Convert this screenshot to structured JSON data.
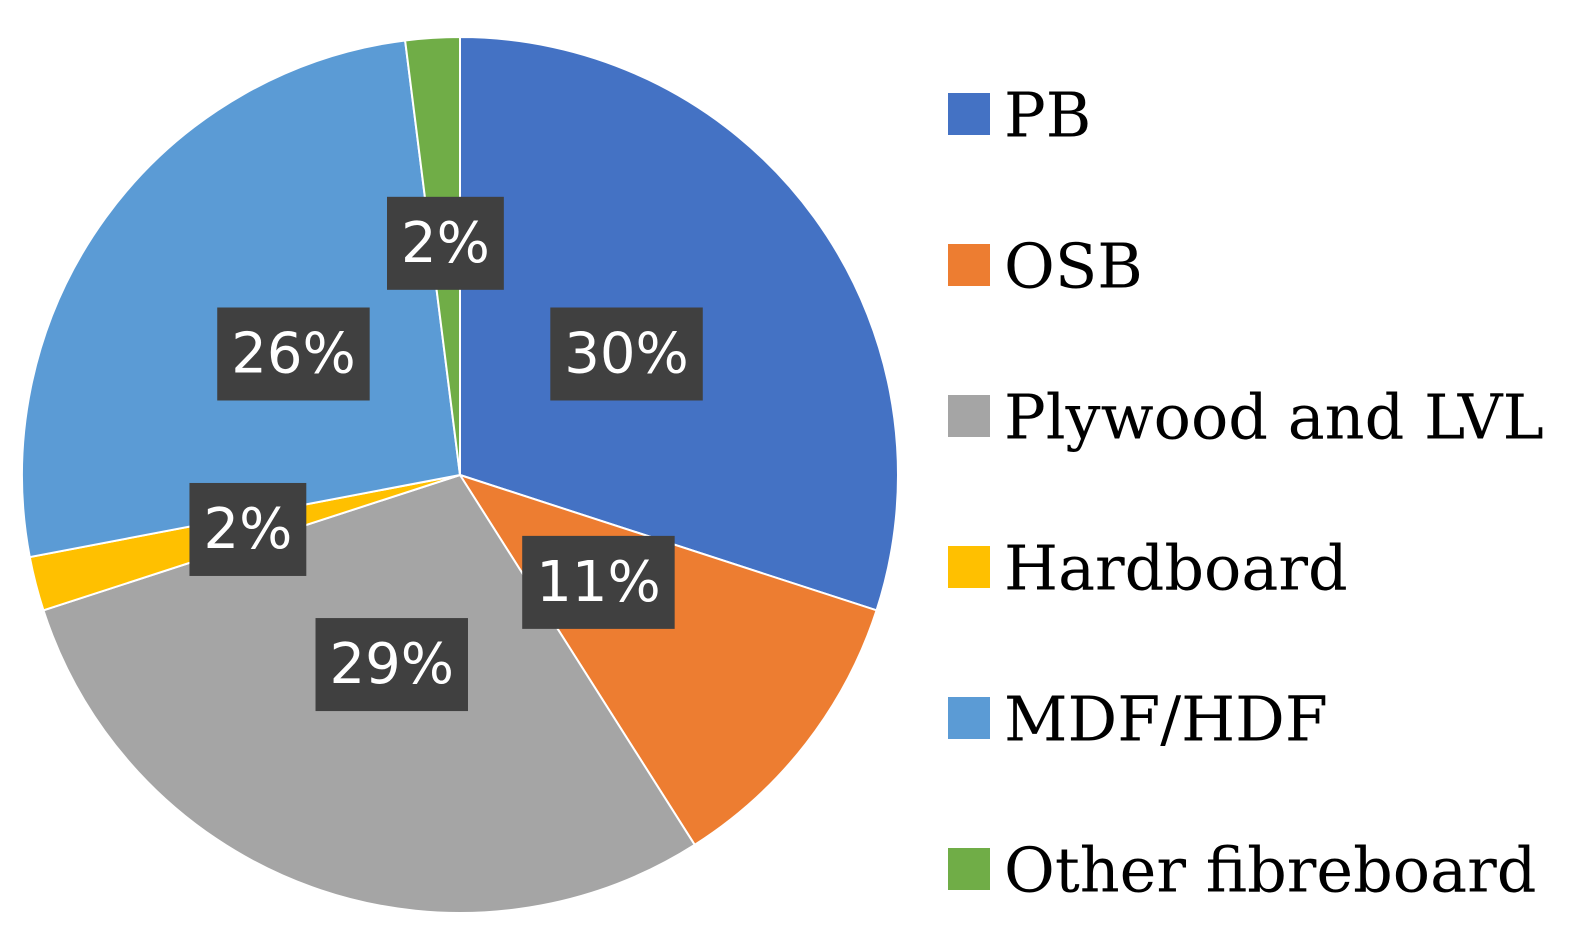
{
  "chart_data": {
    "type": "pie",
    "title": "",
    "legend_position": "right",
    "slices": [
      {
        "name": "PB",
        "value": 30,
        "label": "30%",
        "color": "#4472C4"
      },
      {
        "name": "OSB",
        "value": 11,
        "label": "11%",
        "color": "#ED7D31"
      },
      {
        "name": "Plywood and LVL",
        "value": 29,
        "label": "29%",
        "color": "#A5A5A5"
      },
      {
        "name": "Hardboard",
        "value": 2,
        "label": "2%",
        "color": "#FFC000"
      },
      {
        "name": "MDF/HDF",
        "value": 26,
        "label": "26%",
        "color": "#5B9BD5"
      },
      {
        "name": "Other fibreboard",
        "value": 2,
        "label": "2%",
        "color": "#70AD47"
      }
    ],
    "data_label_background": "#404040",
    "data_label_text_color": "#FFFFFF"
  }
}
